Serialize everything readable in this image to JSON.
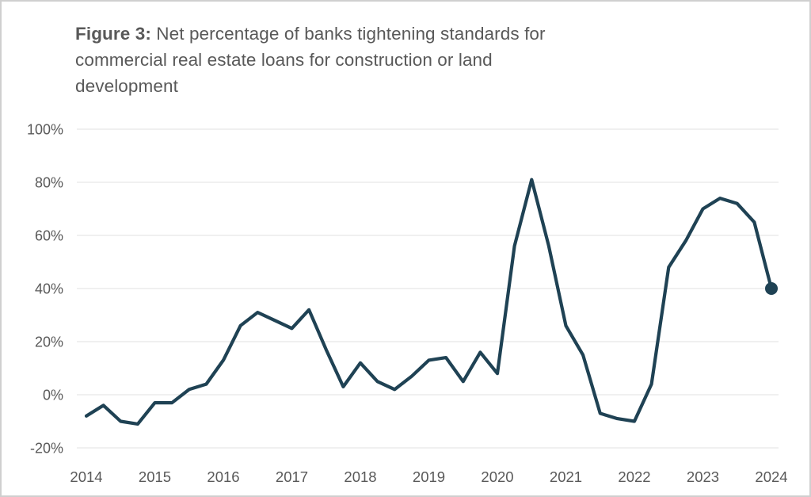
{
  "title": {
    "bold_prefix": "Figure 3:",
    "line1_rest": " Net percentage of banks tightening standards for",
    "line2": "commercial real estate loans for construction or land",
    "line3": "development"
  },
  "colors": {
    "line": "#1F4254",
    "grid": "#EBEBEB",
    "text": "#595959",
    "frame_border": "#CFCFCF",
    "background": "#FFFFFF"
  },
  "chart_data": {
    "type": "line",
    "title": "Figure 3: Net percentage of banks tightening standards for commercial real estate loans for construction or land development",
    "xlabel": "",
    "ylabel": "",
    "ylim": [
      -20,
      100
    ],
    "y_tick_step": 20,
    "y_tick_labels": [
      "100%",
      "80%",
      "60%",
      "40%",
      "20%",
      "0%",
      "-20%"
    ],
    "x_tick_labels": [
      "2014",
      "2015",
      "2016",
      "2017",
      "2018",
      "2019",
      "2020",
      "2021",
      "2022",
      "2023",
      "2024"
    ],
    "grid": "horizontal gridlines only, no axis lines",
    "legend": "none",
    "frequency": "quarterly",
    "end_point_marker": true,
    "series": [
      {
        "name": "Net percentage of banks tightening standards",
        "quarters": [
          "2014 Q1",
          "2014 Q2",
          "2014 Q3",
          "2014 Q4",
          "2015 Q1",
          "2015 Q2",
          "2015 Q3",
          "2015 Q4",
          "2016 Q1",
          "2016 Q2",
          "2016 Q3",
          "2016 Q4",
          "2017 Q1",
          "2017 Q2",
          "2017 Q3",
          "2017 Q4",
          "2018 Q1",
          "2018 Q2",
          "2018 Q3",
          "2018 Q4",
          "2019 Q1",
          "2019 Q2",
          "2019 Q3",
          "2019 Q4",
          "2020 Q1",
          "2020 Q2",
          "2020 Q3",
          "2020 Q4",
          "2021 Q1",
          "2021 Q2",
          "2021 Q3",
          "2021 Q4",
          "2022 Q1",
          "2022 Q2",
          "2022 Q3",
          "2022 Q4",
          "2023 Q1",
          "2023 Q2",
          "2023 Q3",
          "2023 Q4",
          "2024 Q1"
        ],
        "values": [
          -8,
          -4,
          -10,
          -11,
          -3,
          -3,
          2,
          4,
          13,
          26,
          31,
          28,
          25,
          32,
          17,
          3,
          12,
          5,
          2,
          7,
          13,
          14,
          5,
          16,
          8,
          56,
          81,
          56,
          26,
          15,
          -7,
          -9,
          -10,
          4,
          48,
          58,
          70,
          74,
          72,
          65,
          40
        ]
      }
    ]
  }
}
